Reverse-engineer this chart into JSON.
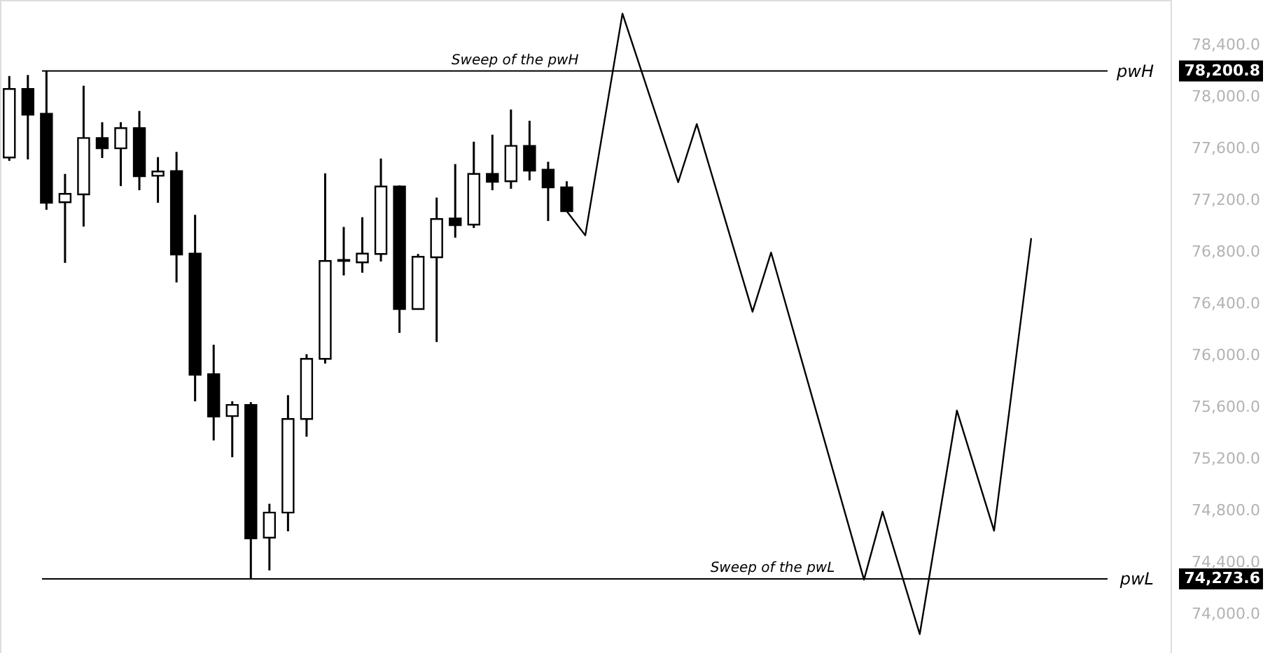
{
  "chart_data": {
    "type": "candlestick",
    "categories": [
      null,
      null,
      null,
      null,
      null,
      null,
      null,
      null,
      null,
      null,
      null,
      null,
      null,
      null,
      null,
      null,
      null,
      null,
      null,
      null,
      null,
      null,
      null,
      null,
      null,
      null,
      null,
      null,
      null,
      null,
      null,
      null,
      null,
      null,
      null,
      null,
      null,
      null,
      null,
      null,
      null,
      null,
      null,
      null,
      null,
      null,
      null,
      null,
      null,
      null,
      null,
      null,
      null,
      null,
      null,
      null,
      null,
      null,
      null,
      null,
      null,
      null,
      null
    ],
    "ohlc": [
      [
        77532,
        78162,
        77506,
        78062
      ],
      [
        78062,
        78170,
        77517,
        77863
      ],
      [
        77870,
        78201,
        77128,
        77182
      ],
      [
        77186,
        77405,
        76717,
        77251
      ],
      [
        77247,
        78087,
        76998,
        77683
      ],
      [
        77683,
        77805,
        77528,
        77603
      ],
      [
        77603,
        77805,
        77311,
        77759
      ],
      [
        77759,
        77892,
        77279,
        77387
      ],
      [
        77391,
        77535,
        77182,
        77424
      ],
      [
        77427,
        77575,
        76566,
        76782
      ],
      [
        76789,
        77089,
        75647,
        75852
      ],
      [
        75856,
        76084,
        75344,
        75528
      ],
      [
        75532,
        75647,
        75214,
        75619
      ],
      [
        75619,
        75640,
        74274,
        74587
      ],
      [
        74592,
        74854,
        74339,
        74786
      ],
      [
        74786,
        75694,
        74641,
        75510
      ],
      [
        75510,
        76011,
        75373,
        75975
      ],
      [
        75975,
        77409,
        75939,
        76732
      ],
      [
        76732,
        76995,
        76620,
        76740
      ],
      [
        76721,
        77070,
        76641,
        76789
      ],
      [
        76786,
        77524,
        76728,
        77308
      ],
      [
        77308,
        77316,
        76176,
        76360
      ],
      [
        76360,
        76786,
        76360,
        76764
      ],
      [
        76760,
        77222,
        76105,
        77056
      ],
      [
        77060,
        77481,
        76912,
        77009
      ],
      [
        77013,
        77654,
        76987,
        77405
      ],
      [
        77405,
        77708,
        77279,
        77344
      ],
      [
        77348,
        77903,
        77290,
        77622
      ],
      [
        77622,
        77816,
        77355,
        77430
      ],
      [
        77438,
        77499,
        77041,
        77301
      ],
      [
        77301,
        77348,
        77117,
        77117
      ],
      null,
      null,
      null,
      null,
      null,
      null,
      null,
      null,
      null,
      null,
      null,
      null,
      null,
      null,
      null,
      null,
      null,
      null,
      null,
      null,
      null,
      null,
      null,
      null,
      null,
      null,
      null,
      null,
      null,
      null,
      null,
      null
    ],
    "series": [
      {
        "type": "line",
        "color": "#000000",
        "values": [
          null,
          null,
          null,
          null,
          null,
          null,
          null,
          null,
          null,
          null,
          null,
          null,
          null,
          null,
          null,
          null,
          null,
          null,
          null,
          null,
          null,
          null,
          null,
          null,
          null,
          null,
          null,
          null,
          null,
          null,
          77117,
          76930,
          null,
          78645,
          null,
          null,
          77341,
          77791,
          null,
          null,
          76339,
          76797,
          null,
          null,
          null,
          null,
          74267,
          74793,
          null,
          73846,
          null,
          75575,
          null,
          74646,
          null,
          76908,
          null,
          null,
          null,
          null,
          null,
          null,
          null
        ]
      }
    ],
    "ylim": [
      73700,
      78750
    ],
    "yticks": [
      {
        "value": 74000,
        "label": "74,000.0"
      },
      {
        "value": 74273.6,
        "label": "74,273.6"
      },
      {
        "value": 74400,
        "label": "74,400.0"
      },
      {
        "value": 74800,
        "label": "74,800.0"
      },
      {
        "value": 75200,
        "label": "75,200.0"
      },
      {
        "value": 75600,
        "label": "75,600.0"
      },
      {
        "value": 76000,
        "label": "76,000.0"
      },
      {
        "value": 76400,
        "label": "76,400.0"
      },
      {
        "value": 76800,
        "label": "76,800.0"
      },
      {
        "value": 77200,
        "label": "77,200.0"
      },
      {
        "value": 77600,
        "label": "77,600.0"
      },
      {
        "value": 78000,
        "label": "78,000.0"
      },
      {
        "value": 78200.8,
        "label": "78,200.8"
      },
      {
        "value": 78400,
        "label": "78,400.0"
      }
    ],
    "ref_lines": [
      {
        "axis": "y",
        "value": 78200.8,
        "label": "pwH",
        "color": "#000000"
      },
      {
        "axis": "y",
        "value": 74273.6,
        "label": "pwL",
        "color": "#000000"
      }
    ],
    "annotations": [
      {
        "text": "Sweep of the pwH",
        "y": 78200.8
      },
      {
        "text": "Sweep of the pwL",
        "y": 74273.6
      }
    ],
    "tick_labels": "y",
    "grid": false
  }
}
